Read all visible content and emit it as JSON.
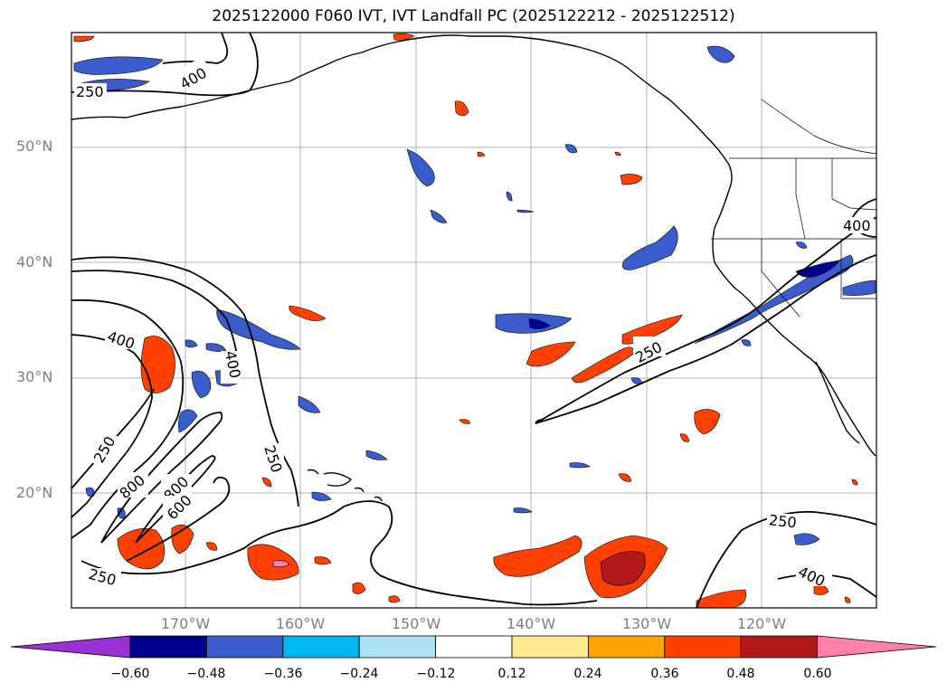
{
  "title": "2025122000 F060 IVT, IVT Landfall PC (2025122212 - 2025122512)",
  "latitude_labels": [
    "50°N",
    "40°N",
    "30°N",
    "20°N"
  ],
  "longitude_labels": [
    "170°W",
    "160°W",
    "150°W",
    "140°W",
    "130°W",
    "120°W"
  ],
  "contour_labels": [
    "400",
    "250",
    "400",
    "400",
    "250",
    "250",
    "800",
    "800",
    "600",
    "250",
    "250",
    "400",
    "250",
    "250",
    "400"
  ],
  "colorbar": {
    "ticks": [
      "−0.60",
      "−0.48",
      "−0.36",
      "−0.24",
      "−0.12",
      "0.12",
      "0.24",
      "0.36",
      "0.48",
      "0.60"
    ],
    "colors": [
      "#9a30d6",
      "#000090",
      "#3a5ccc",
      "#00b7f2",
      "#aee1f7",
      "#ffffff",
      "#fde98e",
      "#ffa300",
      "#ff4000",
      "#b2191b",
      "#ff80aa"
    ]
  },
  "legend": {
    "shading": "IVT Landfall PC",
    "contours": "IVT"
  }
}
